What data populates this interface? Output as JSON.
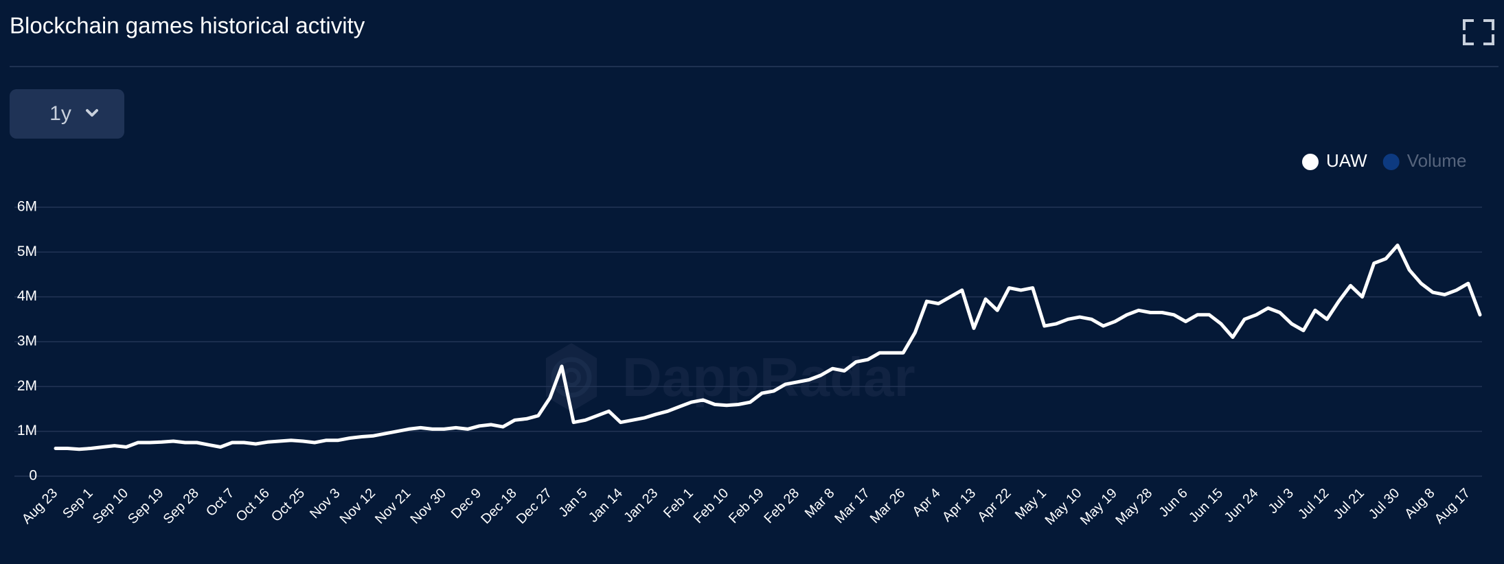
{
  "chart_data": {
    "type": "line",
    "title": "Blockchain games historical activity",
    "range_selector": "1y",
    "watermark": "DappRadar",
    "categories": [
      "Aug 23",
      null,
      null,
      "Sep 1",
      null,
      null,
      "Sep 10",
      null,
      null,
      "Sep 19",
      null,
      null,
      "Sep 28",
      null,
      null,
      "Oct 7",
      null,
      null,
      "Oct 16",
      null,
      null,
      "Oct 25",
      null,
      null,
      "Nov 3",
      null,
      null,
      "Nov 12",
      null,
      null,
      "Nov 21",
      null,
      null,
      "Nov 30",
      null,
      null,
      "Dec 9",
      null,
      null,
      "Dec 18",
      null,
      null,
      "Dec 27",
      null,
      null,
      "Jan 5",
      null,
      null,
      "Jan 14",
      null,
      null,
      "Jan 23",
      null,
      null,
      "Feb 1",
      null,
      null,
      "Feb 10",
      null,
      null,
      "Feb 19",
      null,
      null,
      "Feb 28",
      null,
      null,
      "Mar 8",
      null,
      null,
      "Mar 17",
      null,
      null,
      "Mar 26",
      null,
      null,
      "Apr 4",
      null,
      null,
      "Apr 13",
      null,
      null,
      "Apr 22",
      null,
      null,
      "May 1",
      null,
      null,
      "May 10",
      null,
      null,
      "May 19",
      null,
      null,
      "May 28",
      null,
      null,
      "Jun 6",
      null,
      null,
      "Jun 15",
      null,
      null,
      "Jun 24",
      null,
      null,
      "Jul 3",
      null,
      null,
      "Jul 12",
      null,
      null,
      "Jul 21",
      null,
      null,
      "Jul 30",
      null,
      null,
      "Aug 8",
      null,
      null,
      "Aug 17",
      null
    ],
    "series": [
      {
        "name": "UAW",
        "color": "#ffffff",
        "values": [
          620000,
          620000,
          600000,
          620000,
          650000,
          680000,
          650000,
          750000,
          750000,
          760000,
          780000,
          750000,
          750000,
          700000,
          650000,
          750000,
          750000,
          720000,
          760000,
          780000,
          800000,
          780000,
          750000,
          800000,
          800000,
          850000,
          880000,
          900000,
          950000,
          1000000,
          1050000,
          1080000,
          1050000,
          1050000,
          1080000,
          1050000,
          1120000,
          1150000,
          1100000,
          1250000,
          1280000,
          1350000,
          1750000,
          2450000,
          1200000,
          1250000,
          1350000,
          1450000,
          1200000,
          1250000,
          1300000,
          1380000,
          1450000,
          1550000,
          1650000,
          1700000,
          1600000,
          1580000,
          1600000,
          1650000,
          1850000,
          1900000,
          2050000,
          2100000,
          2150000,
          2250000,
          2400000,
          2350000,
          2550000,
          2600000,
          2750000,
          2750000,
          2750000,
          3200000,
          3900000,
          3850000,
          4000000,
          4150000,
          3300000,
          3950000,
          3700000,
          4200000,
          4150000,
          4200000,
          3350000,
          3400000,
          3500000,
          3550000,
          3500000,
          3350000,
          3450000,
          3600000,
          3700000,
          3650000,
          3650000,
          3600000,
          3450000,
          3600000,
          3600000,
          3400000,
          3100000,
          3500000,
          3600000,
          3750000,
          3650000,
          3400000,
          3250000,
          3700000,
          3500000,
          3900000,
          4250000,
          4000000,
          4750000,
          4850000,
          5150000,
          4600000,
          4300000,
          4100000,
          4050000,
          4150000,
          4300000,
          3600000
        ]
      }
    ],
    "hidden_series": [
      {
        "name": "Volume",
        "color": "#0d3a80"
      }
    ],
    "ylim": [
      0,
      6000000
    ],
    "yticks": [
      0,
      {
        "value": 1000000,
        "label": "1M"
      },
      {
        "value": 2000000,
        "label": "2M"
      },
      {
        "value": 3000000,
        "label": "3M"
      },
      {
        "value": 4000000,
        "label": "4M"
      },
      {
        "value": 5000000,
        "label": "5M"
      },
      {
        "value": 6000000,
        "label": "6M"
      }
    ],
    "grid": true
  }
}
